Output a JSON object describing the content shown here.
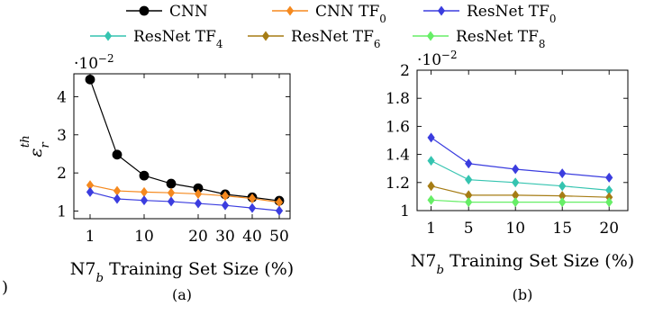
{
  "legend": {
    "placement": "top-center",
    "rows": [
      [
        "CNN",
        "CNN TF₀",
        "ResNet TF₀"
      ],
      [
        "ResNet TF₄",
        "ResNet TF₆",
        "ResNet TF₈"
      ]
    ]
  },
  "colors": {
    "CNN": "#000000",
    "CNN TF₀": "#f5891e",
    "ResNet TF₀": "#3b3ddf",
    "ResNet TF₄": "#35c4b0",
    "ResNet TF₆": "#a67c14",
    "ResNet TF₈": "#66ee66",
    "axis": "#000000"
  },
  "left_stray_char": ")",
  "chart_data": [
    {
      "type": "line",
      "caption": "(a)",
      "xlabel": "N7_b Training Set Size (%)",
      "ylabel": "ε_r^th",
      "y_multiplier": "·10⁻²",
      "x_scale": "categorical-ordered",
      "x": [
        1,
        5,
        10,
        15,
        20,
        30,
        40,
        50
      ],
      "x_ticks": [
        1,
        10,
        20,
        30,
        40,
        50
      ],
      "y_ticks": [
        1,
        2,
        3,
        4
      ],
      "ylim": [
        0.8,
        4.6
      ],
      "grid": false,
      "series": [
        {
          "name": "CNN",
          "marker": "circle",
          "values": [
            4.45,
            2.48,
            1.93,
            1.72,
            1.6,
            1.44,
            1.36,
            1.27
          ]
        },
        {
          "name": "CNN TF₀",
          "marker": "diamond",
          "values": [
            1.68,
            1.53,
            1.5,
            1.48,
            1.45,
            1.4,
            1.33,
            1.23
          ]
        },
        {
          "name": "ResNet TF₀",
          "marker": "diamond",
          "values": [
            1.5,
            1.32,
            1.28,
            1.25,
            1.2,
            1.15,
            1.08,
            1.01
          ]
        }
      ]
    },
    {
      "type": "line",
      "caption": "(b)",
      "xlabel": "N7_b Training Set Size (%)",
      "ylabel": "",
      "y_multiplier": "·10⁻²",
      "x_scale": "linear",
      "x": [
        1,
        5,
        10,
        15,
        20
      ],
      "x_ticks": [
        1,
        5,
        10,
        15,
        20
      ],
      "y_ticks": [
        1,
        1.2,
        1.4,
        1.6,
        1.8,
        2
      ],
      "xlim": [
        -0.5,
        22
      ],
      "ylim": [
        1,
        2
      ],
      "grid": false,
      "series": [
        {
          "name": "ResNet TF₀",
          "marker": "diamond",
          "values": [
            1.52,
            1.335,
            1.295,
            1.265,
            1.235
          ]
        },
        {
          "name": "ResNet TF₄",
          "marker": "diamond",
          "values": [
            1.355,
            1.22,
            1.2,
            1.175,
            1.145
          ]
        },
        {
          "name": "ResNet TF₆",
          "marker": "diamond",
          "values": [
            1.175,
            1.11,
            1.11,
            1.105,
            1.095
          ]
        },
        {
          "name": "ResNet TF₈",
          "marker": "diamond",
          "values": [
            1.075,
            1.06,
            1.06,
            1.06,
            1.06
          ]
        }
      ]
    }
  ]
}
